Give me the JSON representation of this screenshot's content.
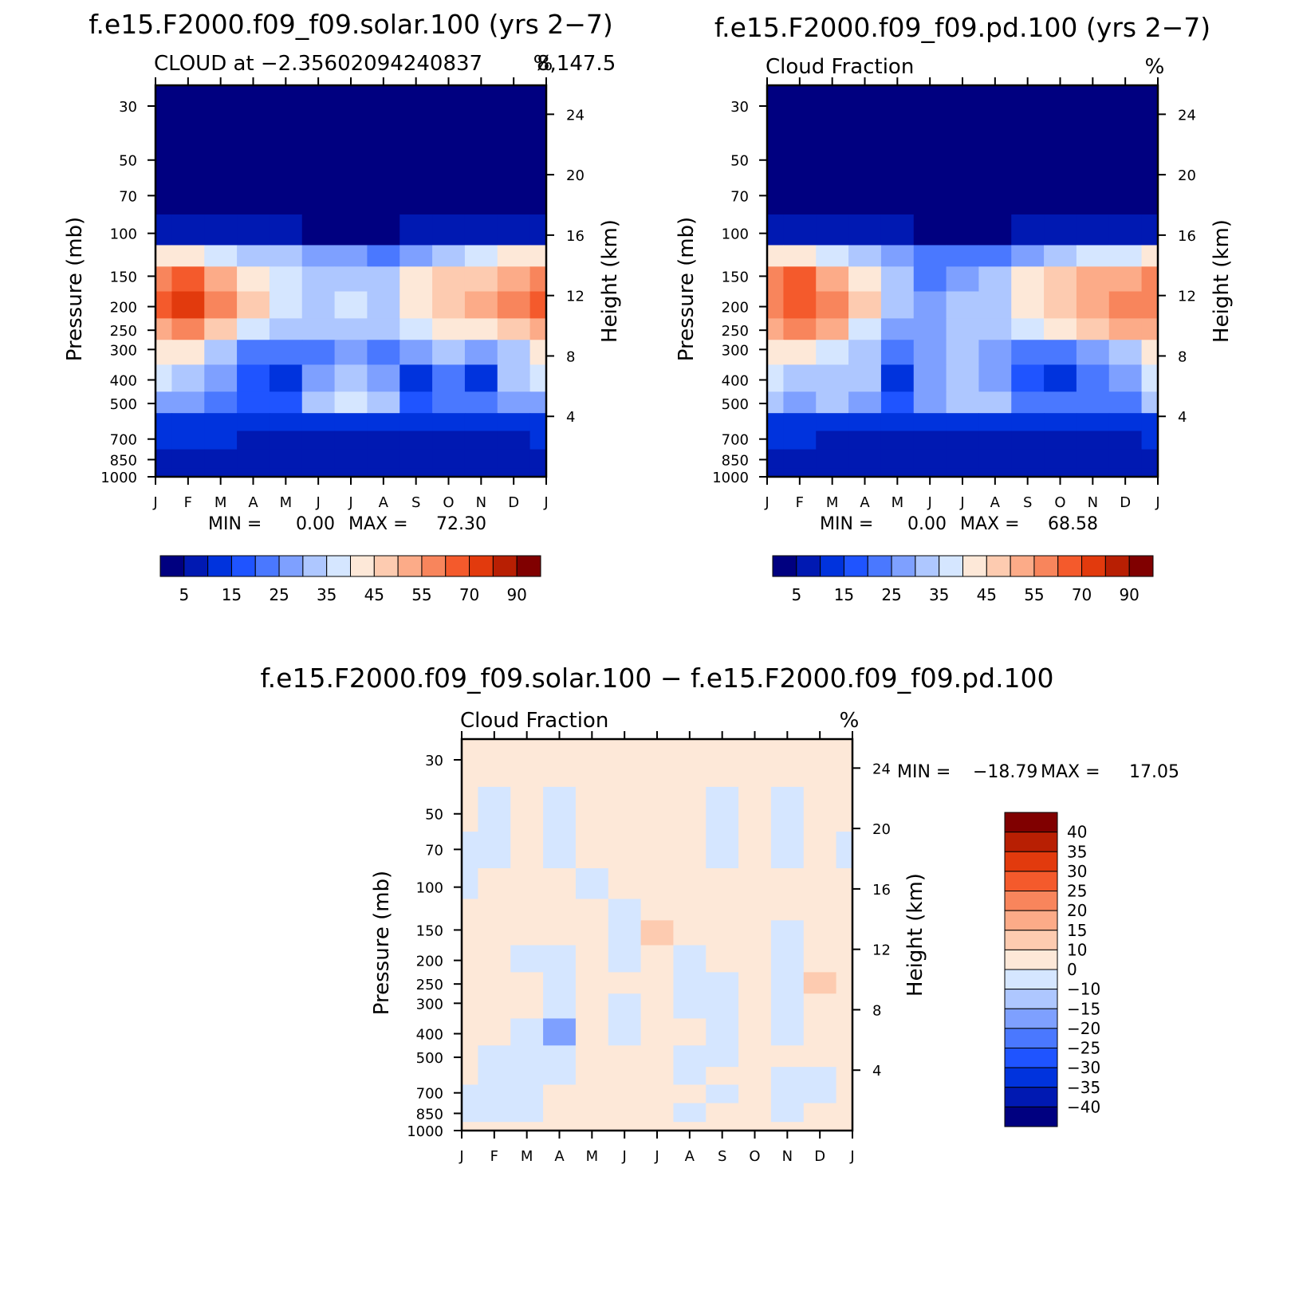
{
  "colors": {
    "levels_abs": [
      "#000080",
      "#0019b2",
      "#0033dd",
      "#1f54ff",
      "#4a78ff",
      "#7ea0ff",
      "#aec7ff",
      "#d5e6ff",
      "#fde8d8",
      "#fdcbb0",
      "#fcab88",
      "#f8855c",
      "#f45a2c",
      "#e23a0d",
      "#b81f03",
      "#800000"
    ],
    "levels_diff": [
      "#000080",
      "#0019b2",
      "#0033dd",
      "#1f54ff",
      "#4a78ff",
      "#7ea0ff",
      "#aec7ff",
      "#d5e6ff",
      "#fde8d8",
      "#fdcbb0",
      "#fcab88",
      "#f8855c",
      "#f45a2c",
      "#e23a0d",
      "#b81f03",
      "#800000"
    ]
  },
  "chart_data": [
    {
      "type": "heatmap",
      "title": "f.e15.F2000.f09_f09.solar.100 (yrs 2−7)",
      "subtitle_left": "CLOUD at −2.35602094240837",
      "subtitle_overlap": "8,147.5",
      "subtitle_right": "%",
      "xlabel": "",
      "ylabel": "Pressure (mb)",
      "ylabel_right": "Height (km)",
      "x_ticks": [
        "J",
        "F",
        "M",
        "A",
        "M",
        "J",
        "J",
        "A",
        "S",
        "O",
        "N",
        "D",
        "J"
      ],
      "y_ticks": [
        30,
        50,
        70,
        100,
        150,
        200,
        250,
        300,
        400,
        500,
        700,
        850,
        1000
      ],
      "y_ticks_right": [
        24,
        20,
        16,
        12,
        8,
        4
      ],
      "ylim": [
        20,
        1000
      ],
      "min_text": "MIN =",
      "min_value": "0.00",
      "max_text": "MAX =",
      "max_value": "72.30",
      "colorbar_labels": [
        "5",
        "15",
        "25",
        "35",
        "45",
        "55",
        "70",
        "90"
      ],
      "grid_levels": [
        20,
        30,
        50,
        70,
        100,
        125,
        150,
        200,
        250,
        300,
        400,
        500,
        600,
        700,
        850,
        1000
      ],
      "values": [
        [
          0,
          0,
          0,
          0,
          0,
          0,
          0,
          0,
          0,
          0,
          0,
          0,
          0
        ],
        [
          0,
          0,
          0,
          0,
          0,
          0,
          0,
          0,
          0,
          0,
          0,
          0,
          0
        ],
        [
          0,
          0,
          0,
          0,
          0,
          0,
          0,
          0,
          0,
          0,
          0,
          0,
          0
        ],
        [
          1,
          1,
          1,
          1,
          1,
          0.5,
          0.5,
          0.5,
          1,
          1,
          1,
          1,
          1
        ],
        [
          9,
          8,
          7,
          6,
          6,
          4,
          3,
          3,
          5,
          6,
          8,
          9,
          9
        ],
        [
          40,
          42,
          36,
          32,
          30,
          28,
          26,
          24,
          28,
          32,
          38,
          40,
          40
        ],
        [
          58,
          64,
          52,
          44,
          37,
          34,
          32,
          32,
          40,
          45,
          48,
          52,
          58
        ],
        [
          60,
          70,
          56,
          46,
          38,
          34,
          36,
          34,
          42,
          48,
          50,
          55,
          60
        ],
        [
          54,
          56,
          48,
          38,
          32,
          30,
          34,
          30,
          36,
          42,
          44,
          48,
          54
        ],
        [
          44,
          40,
          34,
          24,
          22,
          24,
          28,
          24,
          26,
          30,
          26,
          34,
          44
        ],
        [
          38,
          32,
          28,
          15,
          14,
          26,
          32,
          26,
          14,
          24,
          14,
          30,
          38
        ],
        [
          28,
          26,
          24,
          18,
          15,
          30,
          36,
          30,
          18,
          22,
          20,
          26,
          28
        ],
        [
          14,
          13,
          13,
          12,
          11,
          11,
          11,
          11,
          12,
          13,
          12,
          13,
          14
        ],
        [
          10,
          10,
          10,
          9,
          8,
          5,
          5,
          5,
          7,
          8,
          9,
          9,
          10
        ],
        [
          8,
          8,
          8,
          8,
          8,
          6,
          6,
          6,
          6,
          6,
          7,
          8,
          8
        ],
        [
          7,
          7,
          7,
          7,
          7,
          7,
          7,
          7,
          7,
          7,
          7,
          7,
          7
        ]
      ]
    },
    {
      "type": "heatmap",
      "title": "f.e15.F2000.f09_f09.pd.100 (yrs 2−7)",
      "subtitle_left": "Cloud Fraction",
      "subtitle_right": "%",
      "xlabel": "",
      "ylabel": "Pressure (mb)",
      "ylabel_right": "Height (km)",
      "x_ticks": [
        "J",
        "F",
        "M",
        "A",
        "M",
        "J",
        "J",
        "A",
        "S",
        "O",
        "N",
        "D",
        "J"
      ],
      "y_ticks": [
        30,
        50,
        70,
        100,
        150,
        200,
        250,
        300,
        400,
        500,
        700,
        850,
        1000
      ],
      "y_ticks_right": [
        24,
        20,
        16,
        12,
        8,
        4
      ],
      "ylim": [
        20,
        1000
      ],
      "min_text": "MIN =",
      "min_value": "0.00",
      "max_text": "MAX =",
      "max_value": "68.58",
      "colorbar_labels": [
        "5",
        "15",
        "25",
        "35",
        "45",
        "55",
        "70",
        "90"
      ],
      "grid_levels": [
        20,
        30,
        50,
        70,
        100,
        125,
        150,
        200,
        250,
        300,
        400,
        500,
        600,
        700,
        850,
        1000
      ],
      "values": [
        [
          0,
          0,
          0,
          0,
          0,
          0,
          0,
          0,
          0,
          0,
          0,
          0,
          0
        ],
        [
          0,
          0,
          0,
          0,
          0,
          0,
          0,
          0,
          0,
          0,
          0,
          0,
          0
        ],
        [
          0,
          0,
          0,
          0,
          0,
          0,
          0,
          0,
          0,
          0,
          0,
          0,
          0
        ],
        [
          1,
          1,
          1,
          1,
          1,
          0.5,
          0.5,
          0.5,
          1,
          1,
          1,
          1,
          1
        ],
        [
          9,
          8,
          7,
          6,
          5,
          4,
          3,
          3,
          5,
          6,
          8,
          8,
          9
        ],
        [
          40,
          44,
          36,
          30,
          26,
          22,
          20,
          22,
          28,
          33,
          36,
          38,
          40
        ],
        [
          56,
          64,
          54,
          42,
          34,
          24,
          28,
          32,
          40,
          46,
          50,
          52,
          56
        ],
        [
          58,
          68,
          58,
          46,
          34,
          26,
          30,
          34,
          42,
          48,
          52,
          55,
          58
        ],
        [
          52,
          56,
          50,
          38,
          28,
          26,
          32,
          32,
          36,
          42,
          46,
          50,
          52
        ],
        [
          42,
          40,
          36,
          30,
          20,
          26,
          32,
          28,
          22,
          24,
          26,
          32,
          42
        ],
        [
          38,
          34,
          32,
          30,
          14,
          26,
          30,
          26,
          18,
          14,
          22,
          28,
          38
        ],
        [
          30,
          28,
          30,
          28,
          18,
          28,
          32,
          30,
          24,
          20,
          22,
          24,
          30
        ],
        [
          14,
          13,
          13,
          12,
          11,
          11,
          12,
          12,
          12,
          13,
          12,
          13,
          14
        ],
        [
          10,
          10,
          9,
          9,
          8,
          6,
          5,
          5,
          7,
          8,
          9,
          9,
          10
        ],
        [
          8,
          8,
          8,
          8,
          8,
          7,
          6,
          6,
          6,
          6,
          7,
          8,
          8
        ],
        [
          7,
          7,
          7,
          7,
          7,
          7,
          7,
          7,
          7,
          7,
          7,
          7,
          7
        ]
      ]
    },
    {
      "type": "heatmap",
      "title": "f.e15.F2000.f09_f09.solar.100 − f.e15.F2000.f09_f09.pd.100",
      "subtitle_left": "Cloud Fraction",
      "subtitle_right": "%",
      "xlabel": "",
      "ylabel": "Pressure (mb)",
      "ylabel_right": "Height (km)",
      "x_ticks": [
        "J",
        "F",
        "M",
        "A",
        "M",
        "J",
        "J",
        "A",
        "S",
        "O",
        "N",
        "D",
        "J"
      ],
      "y_ticks": [
        30,
        50,
        70,
        100,
        150,
        200,
        250,
        300,
        400,
        500,
        700,
        850,
        1000
      ],
      "y_ticks_right": [
        24,
        20,
        16,
        12,
        8,
        4
      ],
      "ylim": [
        20,
        1000
      ],
      "min_text": "MIN =",
      "min_value": "−18.79",
      "max_text": "MAX =",
      "max_value": "17.05",
      "colorbar_labels": [
        "40",
        "35",
        "30",
        "25",
        "20",
        "15",
        "10",
        "0",
        "−10",
        "−15",
        "−20",
        "−25",
        "−30",
        "−35",
        "−40"
      ],
      "grid_levels": [
        20,
        30,
        50,
        70,
        100,
        125,
        150,
        200,
        250,
        300,
        400,
        500,
        600,
        700,
        850,
        1000
      ],
      "values": [
        [
          0.5,
          0.5,
          0.5,
          0.5,
          0.5,
          0.5,
          0.5,
          0.5,
          0.5,
          0.5,
          0.5,
          0.5,
          0.5
        ],
        [
          0.5,
          0.5,
          0.5,
          0.5,
          0.5,
          0.5,
          0.5,
          0.5,
          0.5,
          0.5,
          0.5,
          0.5,
          0.5
        ],
        [
          1,
          -1,
          1,
          -1,
          1,
          1,
          1,
          1,
          -1,
          1,
          -1,
          1,
          1
        ],
        [
          -1,
          -1,
          1,
          -1,
          1,
          1,
          1,
          1,
          -1,
          1,
          -1,
          1,
          -1
        ],
        [
          -1,
          1,
          1,
          1,
          -1,
          1,
          1,
          1,
          1,
          1,
          1,
          1,
          1
        ],
        [
          1,
          1,
          1,
          1,
          1,
          -1,
          1,
          1,
          1,
          1,
          1,
          1,
          1
        ],
        [
          1,
          1,
          1,
          1,
          1,
          -1,
          12,
          1,
          1,
          1,
          -1,
          1,
          1
        ],
        [
          1,
          1,
          -1,
          -1,
          1,
          -1,
          1,
          -1,
          1,
          1,
          -1,
          1,
          1
        ],
        [
          1,
          1,
          1,
          -1,
          1,
          1,
          1,
          -1,
          -1,
          1,
          -1,
          12,
          1
        ],
        [
          1,
          1,
          1,
          -3,
          1,
          -1,
          1,
          -1,
          -1,
          1,
          -1,
          1,
          1
        ],
        [
          1,
          1,
          -1,
          -18,
          1,
          -1,
          1,
          1,
          -1,
          1,
          -1,
          1,
          1
        ],
        [
          1,
          -1,
          -1,
          -5,
          1,
          1,
          1,
          -1,
          -1,
          1,
          1,
          1,
          1
        ],
        [
          1,
          -1,
          -1,
          -1,
          1,
          1,
          1,
          -1,
          1,
          1,
          -1,
          -1,
          1
        ],
        [
          -1,
          -1,
          -1,
          1,
          1,
          1,
          1,
          1,
          -1,
          1,
          -1,
          -1,
          1
        ],
        [
          -1,
          -1,
          -1,
          1,
          1,
          1,
          1,
          -1,
          1,
          1,
          -1,
          1,
          1
        ],
        [
          1,
          1,
          1,
          1,
          1,
          1,
          1,
          1,
          1,
          1,
          1,
          1,
          1
        ]
      ]
    }
  ]
}
